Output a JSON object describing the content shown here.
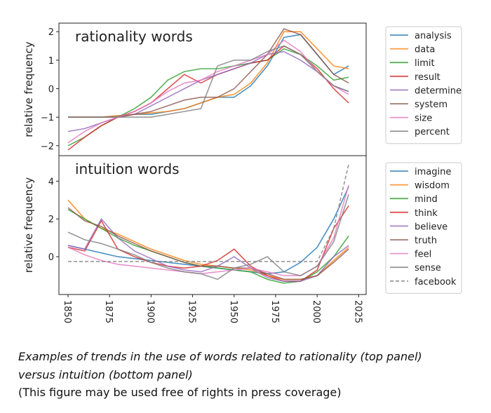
{
  "chart_data": [
    {
      "type": "line",
      "title": "rationality words",
      "y_label": "relative frequency",
      "x": [
        1850,
        1860,
        1870,
        1880,
        1890,
        1900,
        1910,
        1920,
        1930,
        1940,
        1950,
        1960,
        1970,
        1980,
        1990,
        2000,
        2010,
        2019
      ],
      "xlim": [
        1844.5,
        2029.5
      ],
      "ylim": [
        -2.35,
        2.3
      ],
      "yticks": [
        {
          "value": -2,
          "label": "−2"
        },
        {
          "value": -1,
          "label": "−1"
        },
        0,
        1,
        2
      ],
      "legend": "outside right",
      "line_alpha": 0.8,
      "series": [
        {
          "name": "analysis",
          "color": "#1f77b4",
          "values": [
            -1.0,
            -1.0,
            -1.0,
            -0.95,
            -0.9,
            -0.9,
            -0.8,
            -0.7,
            -0.5,
            -0.3,
            -0.3,
            0.1,
            0.8,
            1.8,
            1.9,
            1.2,
            0.5,
            0.8
          ]
        },
        {
          "name": "data",
          "color": "#ff7f0e",
          "values": [
            -1.0,
            -1.0,
            -1.0,
            -0.95,
            -0.9,
            -0.85,
            -0.8,
            -0.7,
            -0.5,
            -0.3,
            -0.2,
            0.2,
            0.9,
            2.0,
            2.0,
            1.4,
            0.8,
            0.7
          ]
        },
        {
          "name": "limit",
          "color": "#2ca02c",
          "values": [
            -2.0,
            -1.7,
            -1.3,
            -1.0,
            -0.7,
            -0.3,
            0.3,
            0.6,
            0.7,
            0.7,
            0.8,
            0.9,
            1.0,
            1.4,
            1.2,
            0.8,
            0.3,
            0.4
          ]
        },
        {
          "name": "result",
          "color": "#d62728",
          "values": [
            -2.15,
            -1.7,
            -1.3,
            -1.0,
            -0.8,
            -0.5,
            0.0,
            0.5,
            0.2,
            0.5,
            0.7,
            0.9,
            1.0,
            1.5,
            1.2,
            0.7,
            0.0,
            -0.5
          ]
        },
        {
          "name": "determine",
          "color": "#9467bd",
          "values": [
            -1.5,
            -1.4,
            -1.2,
            -1.0,
            -0.9,
            -0.6,
            -0.3,
            0.0,
            0.3,
            0.5,
            0.7,
            0.9,
            1.2,
            1.3,
            1.0,
            0.6,
            0.1,
            -0.1
          ]
        },
        {
          "name": "system",
          "color": "#8c564b",
          "values": [
            -1.0,
            -1.0,
            -1.0,
            -1.0,
            -0.9,
            -0.8,
            -0.6,
            -0.4,
            -0.3,
            -0.3,
            0.0,
            0.6,
            1.2,
            2.1,
            1.9,
            1.2,
            0.5,
            0.2
          ]
        },
        {
          "name": "size",
          "color": "#e377c2",
          "values": [
            -1.9,
            -1.5,
            -1.2,
            -1.0,
            -0.8,
            -0.5,
            -0.1,
            0.2,
            0.3,
            0.6,
            0.8,
            1.0,
            1.2,
            1.7,
            1.3,
            0.6,
            0.1,
            -0.2
          ]
        },
        {
          "name": "percent",
          "color": "#7f7f7f",
          "values": [
            -1.0,
            -1.0,
            -1.0,
            -1.0,
            -1.0,
            -1.0,
            -0.9,
            -0.8,
            -0.7,
            0.8,
            1.0,
            1.0,
            1.3,
            1.5,
            1.2,
            0.6,
            0.1,
            -0.1
          ]
        }
      ]
    },
    {
      "type": "line",
      "title": "intuition words",
      "y_label": "relative frequency",
      "x": [
        1850,
        1860,
        1870,
        1880,
        1890,
        1900,
        1910,
        1920,
        1930,
        1940,
        1950,
        1960,
        1970,
        1980,
        1990,
        2000,
        2010,
        2019
      ],
      "xlim": [
        1844.5,
        2029.5
      ],
      "ylim": [
        -2,
        5.35
      ],
      "xticks": [
        1850,
        1875,
        1900,
        1925,
        1950,
        1975,
        2000,
        2025
      ],
      "yticks": [
        0,
        2,
        4
      ],
      "legend": "outside right",
      "line_alpha": 0.8,
      "series": [
        {
          "name": "imagine",
          "color": "#1f77b4",
          "values": [
            0.6,
            0.4,
            0.2,
            0.0,
            -0.1,
            -0.2,
            -0.3,
            -0.4,
            -0.5,
            -0.6,
            -0.7,
            -0.8,
            -0.9,
            -0.8,
            -0.3,
            0.5,
            2.0,
            3.7
          ]
        },
        {
          "name": "wisdom",
          "color": "#ff7f0e",
          "values": [
            3.0,
            2.0,
            1.5,
            1.2,
            0.8,
            0.4,
            0.1,
            -0.2,
            -0.4,
            -0.5,
            -0.6,
            -0.7,
            -1.0,
            -1.2,
            -1.2,
            -1.0,
            -0.2,
            0.5
          ]
        },
        {
          "name": "mind",
          "color": "#2ca02c",
          "values": [
            2.5,
            2.0,
            1.5,
            1.0,
            0.6,
            0.3,
            0.0,
            -0.3,
            -0.5,
            -0.6,
            -0.7,
            -0.8,
            -1.2,
            -1.4,
            -1.3,
            -0.8,
            0.0,
            1.1
          ]
        },
        {
          "name": "think",
          "color": "#d62728",
          "values": [
            0.5,
            0.3,
            1.9,
            0.4,
            0.0,
            -0.3,
            -0.5,
            -0.6,
            -0.5,
            -0.2,
            0.4,
            -0.5,
            -1.0,
            -1.3,
            -1.3,
            -0.7,
            1.5,
            2.7
          ]
        },
        {
          "name": "believe",
          "color": "#9467bd",
          "values": [
            0.6,
            0.4,
            2.0,
            1.0,
            0.3,
            -0.1,
            -0.5,
            -0.7,
            -0.8,
            -0.5,
            0.0,
            -0.6,
            -1.1,
            -1.3,
            -1.3,
            -1.0,
            0.0,
            0.6
          ]
        },
        {
          "name": "truth",
          "color": "#8c564b",
          "values": [
            2.6,
            1.9,
            1.6,
            1.1,
            0.7,
            0.3,
            0.0,
            -0.3,
            -0.5,
            -0.5,
            -0.6,
            -0.6,
            -0.9,
            -1.2,
            -1.2,
            -1.0,
            -0.3,
            0.4
          ]
        },
        {
          "name": "feel",
          "color": "#e377c2",
          "values": [
            0.5,
            0.1,
            -0.2,
            -0.4,
            -0.5,
            -0.6,
            -0.7,
            -0.8,
            -0.9,
            -0.8,
            -0.7,
            -0.6,
            -0.8,
            -1.0,
            -1.0,
            -0.5,
            1.0,
            3.8
          ]
        },
        {
          "name": "sense",
          "color": "#7f7f7f",
          "values": [
            1.3,
            0.9,
            0.7,
            0.4,
            0.1,
            -0.3,
            -0.6,
            -0.8,
            -0.9,
            -1.2,
            -0.6,
            -0.4,
            0.0,
            -0.8,
            -1.0,
            -0.5,
            0.8,
            3.3
          ]
        },
        {
          "name": "facebook",
          "color": "#7f7f7f",
          "linestyle": "dashed",
          "values": [
            -0.25,
            -0.25,
            -0.25,
            -0.25,
            -0.25,
            -0.25,
            -0.25,
            -0.25,
            -0.25,
            -0.25,
            -0.25,
            -0.25,
            -0.25,
            -0.25,
            -0.25,
            -0.25,
            1.5,
            4.9
          ]
        }
      ]
    }
  ],
  "caption": {
    "lines": [
      "Examples of trends in the use of words related to rationality (top panel)",
      "versus intuition (bottom panel)",
      "(This figure may be used free of rights in press coverage)"
    ]
  }
}
